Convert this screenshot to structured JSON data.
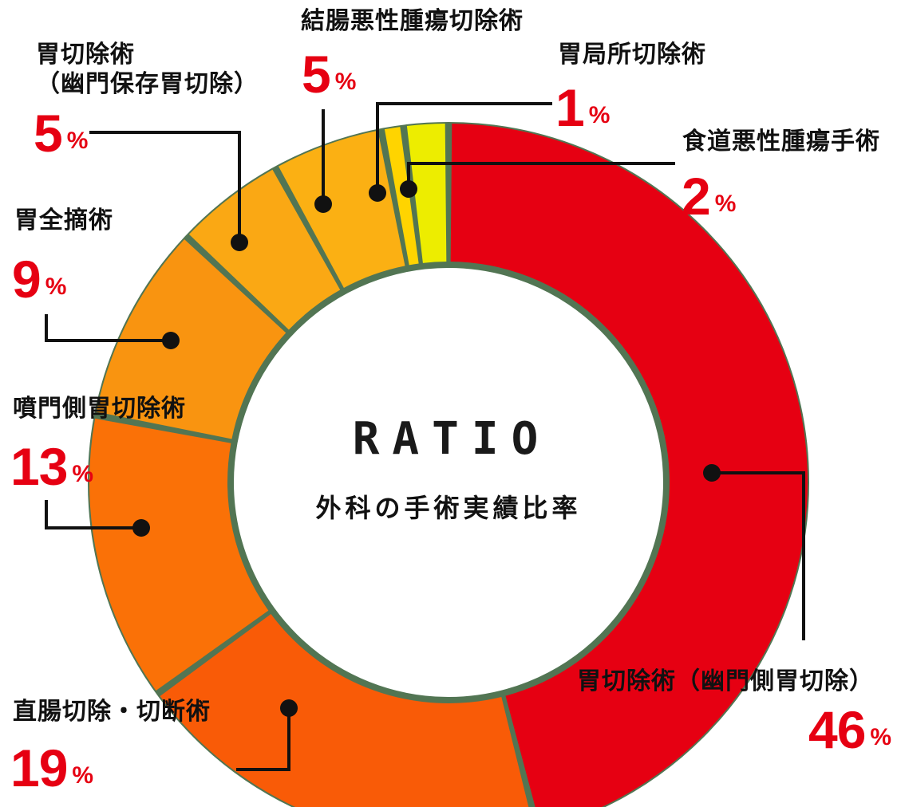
{
  "ui": {
    "background": "#ffffff",
    "percent_sign": "%",
    "text_color": "#111111",
    "percent_color": "#e60012",
    "divider_color": "#527553",
    "leader_color": "#111111"
  },
  "center": {
    "title": "RATIO",
    "subtitle": "外科の手術実績比率"
  },
  "chart_data": {
    "type": "pie",
    "variant": "donut",
    "title": "RATIO",
    "subtitle": "外科の手術実績比率",
    "unit": "%",
    "direction": "clockwise",
    "start_angle_deg": 0,
    "segments": [
      {
        "label": "胃切除術（幽門側胃切除）",
        "value": 46,
        "color": "#e60012"
      },
      {
        "label": "直腸切除・切断術",
        "value": 19,
        "color": "#f95b07"
      },
      {
        "label": "噴門側胃切除術",
        "value": 13,
        "color": "#fa7107"
      },
      {
        "label": "胃全摘術",
        "value": 9,
        "color": "#f99410"
      },
      {
        "label": "胃切除術（幽門保存胃切除）",
        "value": 5,
        "color": "#faa814"
      },
      {
        "label": "結腸悪性腫瘍切除術",
        "value": 5,
        "color": "#fbb013"
      },
      {
        "label": "胃局所切除術",
        "value": 1,
        "color": "#ffd400"
      },
      {
        "label": "食道悪性腫瘍手術",
        "value": 2,
        "color": "#eded00"
      }
    ]
  },
  "callouts": [
    {
      "line1": "胃切除術",
      "line2": "（幽門保存胃切除）",
      "num": "5"
    },
    {
      "line1": "結腸悪性腫瘍切除術",
      "line2": "",
      "num": "5"
    },
    {
      "line1": "胃局所切除術",
      "line2": "",
      "num": "1"
    },
    {
      "line1": "食道悪性腫瘍手術",
      "line2": "",
      "num": "2"
    },
    {
      "line1": "胃全摘術",
      "line2": "",
      "num": "9"
    },
    {
      "line1": "噴門側胃切除術",
      "line2": "",
      "num": "13"
    },
    {
      "line1": "直腸切除・切断術",
      "line2": "",
      "num": "19"
    },
    {
      "line1": "胃切除術（幽門側胃切除）",
      "line2": "",
      "num": "46"
    }
  ]
}
